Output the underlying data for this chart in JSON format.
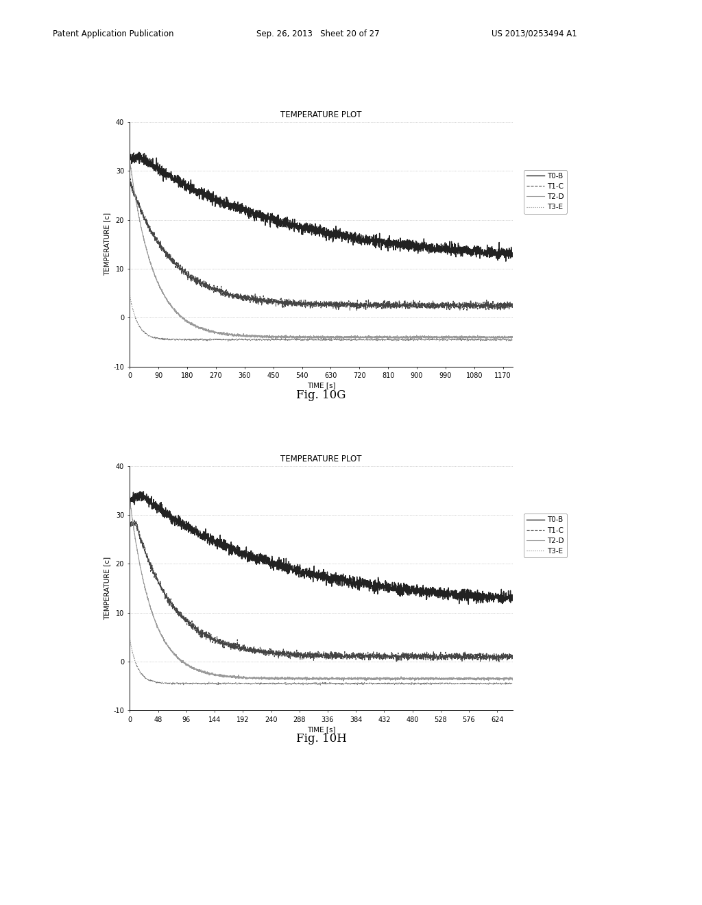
{
  "title": "TEMPERATURE PLOT",
  "ylabel": "TEMPERATURE [c]",
  "xlabel": "TIME [s]",
  "ylim": [
    -10,
    40
  ],
  "yticks": [
    -10,
    0,
    10,
    20,
    30,
    40
  ],
  "fig10G": {
    "xmax": 1200,
    "xlim": [
      0,
      1200
    ],
    "xticks": [
      0,
      90,
      180,
      270,
      360,
      450,
      540,
      630,
      720,
      810,
      900,
      990,
      1080,
      1170
    ],
    "figname": "Fig. 10G",
    "curves": {
      "T0B": {
        "start": 32.5,
        "peak": 33.0,
        "peak_t": 30,
        "end": 11.5,
        "tau": 450,
        "noise": 0.55,
        "style": "solid",
        "color": "#222222",
        "label": "T0-B",
        "lw": 1.0
      },
      "T1C": {
        "start": 28.0,
        "peak": 28.0,
        "peak_t": 0,
        "end": 2.5,
        "tau": 130,
        "noise": 0.35,
        "style": "dashed",
        "color": "#444444",
        "label": "T1-C",
        "lw": 0.8
      },
      "T2D": {
        "start": 32.0,
        "peak": 32.0,
        "peak_t": 0,
        "end": -4.0,
        "tau": 75,
        "noise": 0.12,
        "style": "solid",
        "color": "#999999",
        "label": "T2-D",
        "lw": 0.8
      },
      "T3E": {
        "start": 4.5,
        "peak": 4.5,
        "peak_t": 0,
        "end": -4.5,
        "tau": 25,
        "noise": 0.08,
        "style": "dotted",
        "color": "#777777",
        "label": "T3-E",
        "lw": 0.8
      }
    }
  },
  "fig10H": {
    "xmax": 650,
    "xlim": [
      0,
      650
    ],
    "xticks": [
      0,
      48,
      96,
      144,
      192,
      240,
      288,
      336,
      384,
      432,
      480,
      528,
      576,
      624
    ],
    "figname": "Fig. 10H",
    "curves": {
      "T0B": {
        "start": 33.0,
        "peak": 34.0,
        "peak_t": 20,
        "end": 11.5,
        "tau": 230,
        "noise": 0.55,
        "style": "solid",
        "color": "#222222",
        "label": "T0-B",
        "lw": 1.0
      },
      "T1C": {
        "start": 28.0,
        "peak": 28.5,
        "peak_t": 10,
        "end": 1.0,
        "tau": 65,
        "noise": 0.35,
        "style": "dashed",
        "color": "#444444",
        "label": "T1-C",
        "lw": 0.8
      },
      "T2D": {
        "start": 33.0,
        "peak": 33.0,
        "peak_t": 0,
        "end": -3.5,
        "tau": 38,
        "noise": 0.12,
        "style": "solid",
        "color": "#999999",
        "label": "T2-D",
        "lw": 0.8
      },
      "T3E": {
        "start": 4.5,
        "peak": 4.5,
        "peak_t": 0,
        "end": -4.5,
        "tau": 13,
        "noise": 0.08,
        "style": "dotted",
        "color": "#777777",
        "label": "T3-E",
        "lw": 0.8
      }
    }
  },
  "background_color": "#ffffff",
  "grid_color": "#aaaaaa",
  "header_text1": "Patent Application Publication",
  "header_text2": "Sep. 26, 2013   Sheet 20 of 27",
  "header_text3": "US 2013/0253494 A1"
}
